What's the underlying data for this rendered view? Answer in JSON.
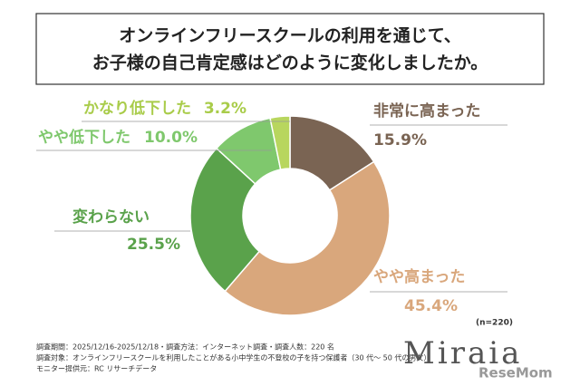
{
  "chart_data": {
    "type": "donut",
    "title": [
      "オンラインフリースクールの利用を通じて、",
      "お子様の自己肯定感はどのように変化しましたか。"
    ],
    "categories": [
      "非常に高まった",
      "やや高まった",
      "変わらない",
      "やや低下した",
      "かなり低下した"
    ],
    "values": [
      15.9,
      45.4,
      25.5,
      10.0,
      3.2
    ],
    "value_labels": [
      "15.9%",
      "45.4%",
      "25.5%",
      "10.0%",
      "3.2%"
    ],
    "colors": [
      "#7a6453",
      "#d9a77c",
      "#5aa24b",
      "#7fc86d",
      "#b8d65e"
    ],
    "label_colors": [
      "#7a6453",
      "#d9a77c",
      "#5aa24b",
      "#7fc86d",
      "#a9cc4a"
    ],
    "sample_size": "(n=220)",
    "notes": [
      "調査期間：2025/12/16-2025/12/18・調査方法：インターネット調査・調査人数：220 名",
      "調査対象：オンラインフリースクールを利用したことがある小中学生の不登校の子を持つ保護者（30 代〜 50 代の男女）",
      "モニター提供元：RC リサーチデータ"
    ],
    "logo": "Miraia",
    "watermark": "ReseMom"
  }
}
